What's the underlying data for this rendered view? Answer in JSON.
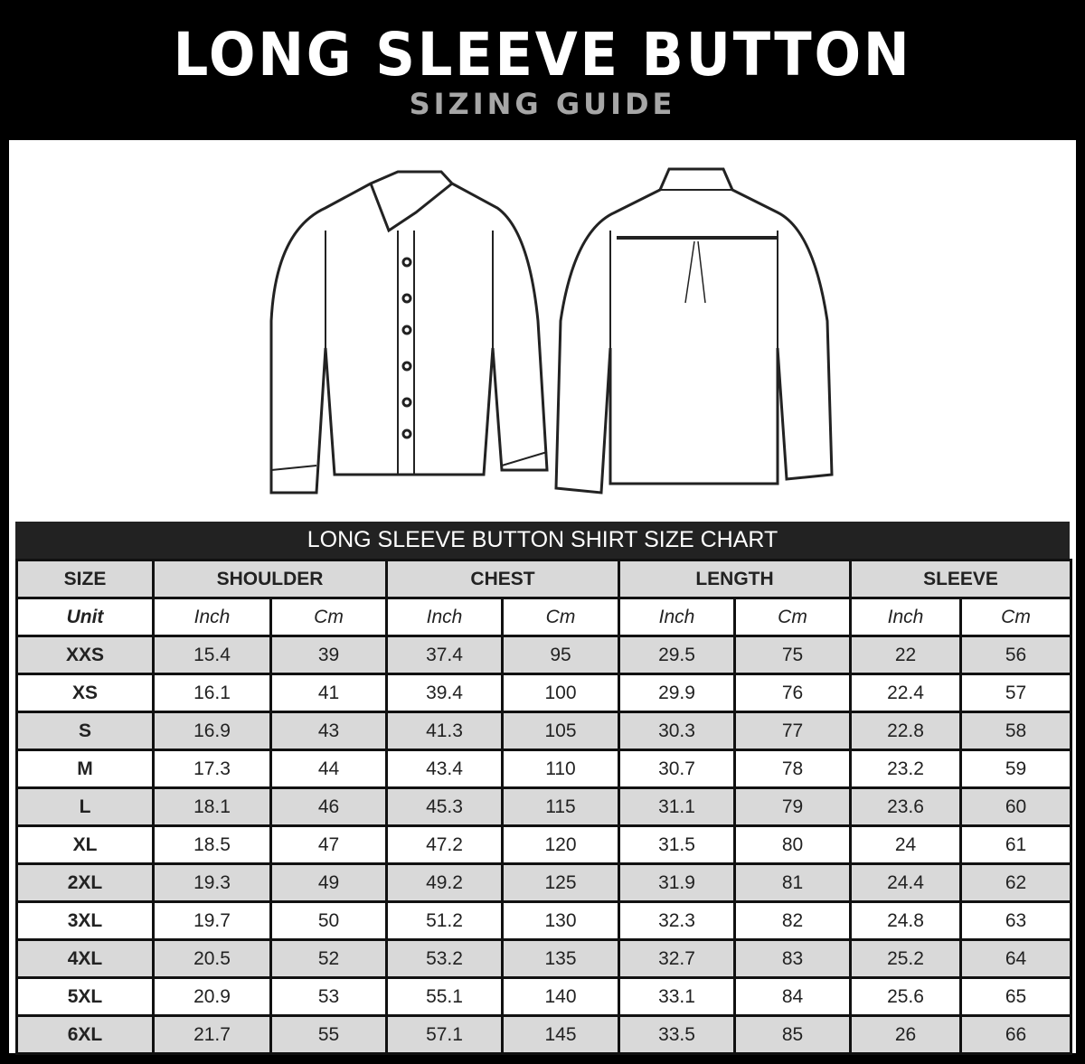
{
  "header": {
    "title": "LONG SLEEVE BUTTON",
    "subtitle": "SIZING GUIDE"
  },
  "chart_data": {
    "type": "table",
    "title": "LONG SLEEVE BUTTON SHIRT SIZE CHART",
    "groups": [
      "SIZE",
      "SHOULDER",
      "CHEST",
      "LENGTH",
      "SLEEVE"
    ],
    "unit_label": "Unit",
    "units": [
      "Inch",
      "Cm",
      "Inch",
      "Cm",
      "Inch",
      "Cm",
      "Inch",
      "Cm"
    ],
    "rows": [
      [
        "XXS",
        "15.4",
        "39",
        "37.4",
        "95",
        "29.5",
        "75",
        "22",
        "56"
      ],
      [
        "XS",
        "16.1",
        "41",
        "39.4",
        "100",
        "29.9",
        "76",
        "22.4",
        "57"
      ],
      [
        "S",
        "16.9",
        "43",
        "41.3",
        "105",
        "30.3",
        "77",
        "22.8",
        "58"
      ],
      [
        "M",
        "17.3",
        "44",
        "43.4",
        "110",
        "30.7",
        "78",
        "23.2",
        "59"
      ],
      [
        "L",
        "18.1",
        "46",
        "45.3",
        "115",
        "31.1",
        "79",
        "23.6",
        "60"
      ],
      [
        "XL",
        "18.5",
        "47",
        "47.2",
        "120",
        "31.5",
        "80",
        "24",
        "61"
      ],
      [
        "2XL",
        "19.3",
        "49",
        "49.2",
        "125",
        "31.9",
        "81",
        "24.4",
        "62"
      ],
      [
        "3XL",
        "19.7",
        "50",
        "51.2",
        "130",
        "32.3",
        "82",
        "24.8",
        "63"
      ],
      [
        "4XL",
        "20.5",
        "52",
        "53.2",
        "135",
        "32.7",
        "83",
        "25.2",
        "64"
      ],
      [
        "5XL",
        "20.9",
        "53",
        "55.1",
        "140",
        "33.1",
        "84",
        "25.6",
        "65"
      ],
      [
        "6XL",
        "21.7",
        "55",
        "57.1",
        "145",
        "33.5",
        "85",
        "26",
        "66"
      ]
    ]
  }
}
